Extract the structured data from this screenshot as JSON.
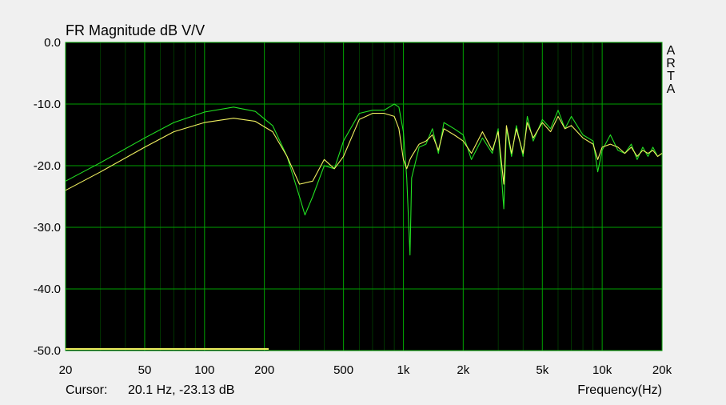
{
  "colors": {
    "background": "#f0f0f0",
    "plot_background": "#000000",
    "grid": "#00a000",
    "series_green": "#22e022",
    "series_yellow": "#f0f060",
    "text": "#000000"
  },
  "chart_data": {
    "type": "line",
    "title": "FR Magnitude dB V/V",
    "xlabel": "Frequency(Hz)",
    "ylabel": "",
    "side_label": [
      "A",
      "R",
      "T",
      "A"
    ],
    "x_scale": "log",
    "xlim": [
      20,
      20000
    ],
    "ylim": [
      -50,
      0
    ],
    "grid": true,
    "y_ticks": [
      0,
      -10,
      -20,
      -30,
      -40,
      -50
    ],
    "y_tick_labels": [
      "0.0",
      "-10.0",
      "-20.0",
      "-30.0",
      "-40.0",
      "-50.0"
    ],
    "x_ticks": [
      20,
      50,
      100,
      200,
      500,
      1000,
      2000,
      5000,
      10000,
      20000
    ],
    "x_tick_labels": [
      "20",
      "50",
      "100",
      "200",
      "500",
      "1k",
      "2k",
      "5k",
      "10k",
      "20k"
    ],
    "series": [
      {
        "color": "#22e022",
        "x": [
          20,
          30,
          50,
          70,
          100,
          140,
          180,
          220,
          260,
          300,
          320,
          350,
          400,
          450,
          500,
          600,
          700,
          800,
          900,
          950,
          1000,
          1040,
          1080,
          1100,
          1200,
          1300,
          1400,
          1500,
          1600,
          1800,
          2000,
          2200,
          2500,
          2800,
          3000,
          3200,
          3300,
          3500,
          3700,
          4000,
          4200,
          4500,
          5000,
          5500,
          6000,
          6500,
          7000,
          8000,
          9000,
          9500,
          10000,
          11000,
          12000,
          13000,
          14000,
          15000,
          16000,
          17000,
          18000,
          19000,
          20000
        ],
        "y": [
          -22.5,
          -19.5,
          -15.5,
          -13.0,
          -11.3,
          -10.5,
          -11.2,
          -13.5,
          -18.5,
          -25.0,
          -28.0,
          -25.0,
          -20.0,
          -20.5,
          -16.0,
          -11.5,
          -11.0,
          -11.0,
          -10.0,
          -10.5,
          -14.5,
          -22.0,
          -34.5,
          -22.0,
          -17.0,
          -16.5,
          -14.0,
          -18.0,
          -13.0,
          -14.0,
          -15.0,
          -19.0,
          -15.5,
          -18.0,
          -14.0,
          -27.0,
          -14.0,
          -18.5,
          -13.5,
          -18.5,
          -12.0,
          -16.0,
          -12.5,
          -14.0,
          -11.0,
          -14.0,
          -12.0,
          -15.0,
          -16.0,
          -21.0,
          -17.5,
          -15.0,
          -17.5,
          -18.0,
          -16.5,
          -19.0,
          -17.0,
          -18.5,
          -17.0,
          -18.5,
          -18.0
        ]
      },
      {
        "color": "#f0f060",
        "x": [
          20,
          30,
          50,
          70,
          100,
          140,
          180,
          220,
          260,
          300,
          350,
          400,
          450,
          500,
          600,
          700,
          800,
          900,
          950,
          1000,
          1040,
          1080,
          1100,
          1200,
          1300,
          1400,
          1500,
          1600,
          1800,
          2000,
          2200,
          2500,
          2800,
          3000,
          3200,
          3300,
          3500,
          3700,
          4000,
          4200,
          4500,
          5000,
          5500,
          6000,
          6500,
          7000,
          8000,
          9000,
          9500,
          10000,
          11000,
          12000,
          13000,
          14000,
          15000,
          16000,
          17000,
          18000,
          19000,
          20000
        ],
        "y": [
          -24.0,
          -21.0,
          -17.0,
          -14.5,
          -13.0,
          -12.3,
          -12.8,
          -14.5,
          -18.5,
          -23.0,
          -22.5,
          -19.0,
          -20.5,
          -18.5,
          -12.5,
          -11.5,
          -11.5,
          -12.0,
          -14.0,
          -19.0,
          -20.5,
          -19.0,
          -18.5,
          -16.5,
          -16.0,
          -15.0,
          -17.5,
          -14.0,
          -15.0,
          -16.0,
          -18.0,
          -14.5,
          -17.5,
          -14.5,
          -23.0,
          -13.5,
          -18.0,
          -14.0,
          -18.0,
          -13.0,
          -15.5,
          -13.0,
          -14.5,
          -12.0,
          -14.0,
          -13.5,
          -15.5,
          -16.5,
          -19.0,
          -17.0,
          -16.5,
          -17.0,
          -18.0,
          -17.0,
          -18.5,
          -17.5,
          -18.0,
          -17.5,
          -18.5,
          -18.0
        ]
      }
    ],
    "cursor_label": "Cursor:",
    "cursor_value": "20.1 Hz, -23.13 dB"
  }
}
